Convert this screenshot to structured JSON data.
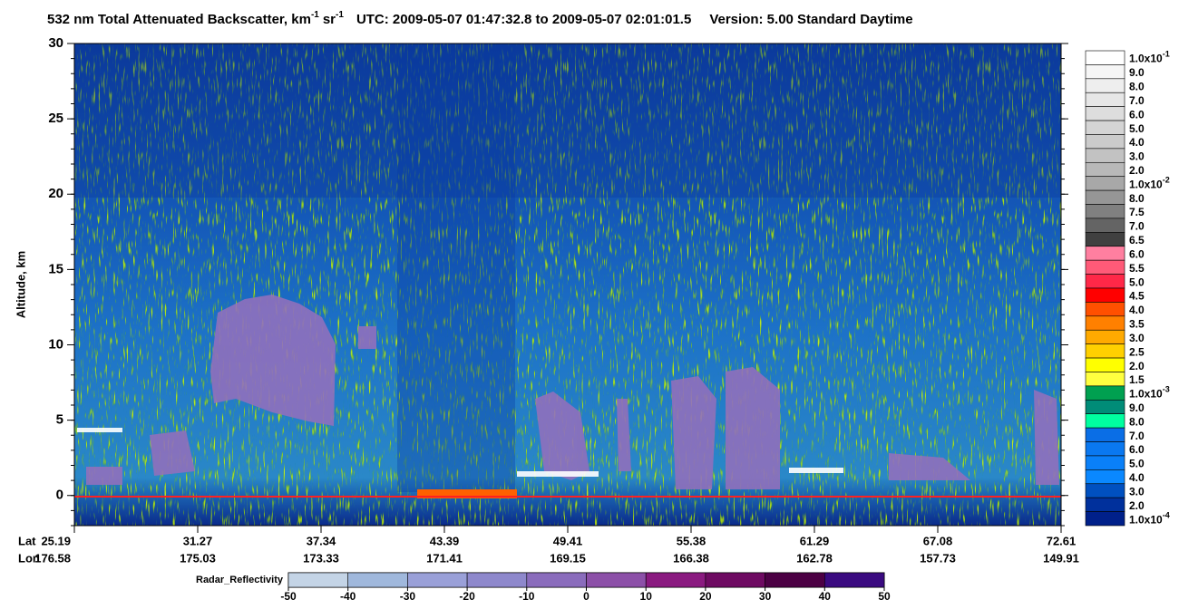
{
  "header": {
    "title": "532 nm Total Attenuated Backscatter, km",
    "title_unit_exponent": "-1",
    "title_unit_2": "sr",
    "title_unit_2_exponent": "-1",
    "time_range": "UTC:  2009-05-07 01:47:32.8  to  2009-05-07 02:01:01.5",
    "version": "Version: 5.00  Standard  Daytime"
  },
  "chart_data": {
    "type": "heatmap",
    "ylabel": "Altitude, km",
    "ylim": [
      -2,
      30
    ],
    "yticks": [
      0,
      5,
      10,
      15,
      20,
      25,
      30
    ],
    "x_axis": {
      "row_labels": [
        "Lat",
        "Lon"
      ],
      "lat": [
        25.19,
        31.27,
        37.34,
        43.39,
        49.41,
        55.38,
        61.29,
        67.08,
        72.61
      ],
      "lon": [
        176.58,
        175.03,
        173.33,
        171.41,
        169.15,
        166.38,
        162.78,
        157.73,
        149.91
      ]
    },
    "colorbar": [
      {
        "label": "1.0x10",
        "exponent": "-1",
        "color": "#ffffff"
      },
      {
        "label": "9.0",
        "color": "#f6f6f6"
      },
      {
        "label": "8.0",
        "color": "#eeeeee"
      },
      {
        "label": "7.0",
        "color": "#e6e6e6"
      },
      {
        "label": "6.0",
        "color": "#dddddd"
      },
      {
        "label": "5.0",
        "color": "#d4d4d4"
      },
      {
        "label": "4.0",
        "color": "#cbcbcb"
      },
      {
        "label": "3.0",
        "color": "#c2c2c2"
      },
      {
        "label": "2.0",
        "color": "#b8b8b8"
      },
      {
        "label": "1.0x10",
        "exponent": "-2",
        "color": "#a8a8a8"
      },
      {
        "label": "8.0",
        "color": "#969696"
      },
      {
        "label": "7.5",
        "color": "#808080"
      },
      {
        "label": "7.0",
        "color": "#646464"
      },
      {
        "label": "6.5",
        "color": "#404040"
      },
      {
        "label": "6.0",
        "color": "#ff7fa0"
      },
      {
        "label": "5.5",
        "color": "#ff5a78"
      },
      {
        "label": "5.0",
        "color": "#ff2848"
      },
      {
        "label": "4.5",
        "color": "#ff0000"
      },
      {
        "label": "4.0",
        "color": "#ff5000"
      },
      {
        "label": "3.5",
        "color": "#ff8000"
      },
      {
        "label": "3.0",
        "color": "#ffaa00"
      },
      {
        "label": "2.5",
        "color": "#ffd000"
      },
      {
        "label": "2.0",
        "color": "#ffff00"
      },
      {
        "label": "1.5",
        "color": "#ffff40"
      },
      {
        "label": "1.0x10",
        "exponent": "-3",
        "color": "#00a050"
      },
      {
        "label": "9.0",
        "color": "#008c78"
      },
      {
        "label": "8.0",
        "color": "#00ffa0"
      },
      {
        "label": "7.0",
        "color": "#0a6ee6"
      },
      {
        "label": "6.0",
        "color": "#0a78f0"
      },
      {
        "label": "5.0",
        "color": "#0a80f8"
      },
      {
        "label": "4.0",
        "color": "#0a88ff"
      },
      {
        "label": "3.0",
        "color": "#0050c0"
      },
      {
        "label": "2.0",
        "color": "#00309c"
      },
      {
        "label": "1.0x10",
        "exponent": "-4",
        "color": "#00208a"
      }
    ],
    "radar_colorbar": {
      "label": "Radar_Reflectivity",
      "xlim": [
        -50,
        50
      ],
      "xticks": [
        -50,
        -40,
        -30,
        -20,
        -10,
        0,
        10,
        20,
        30,
        40,
        50
      ],
      "colors": [
        "#c4d4e6",
        "#a0b8dc",
        "#9aa0d8",
        "#8e88cc",
        "#8a6cbc",
        "#8c50a8",
        "#8a1a80",
        "#6e0a62",
        "#4c0044",
        "#3a0a80"
      ]
    }
  }
}
